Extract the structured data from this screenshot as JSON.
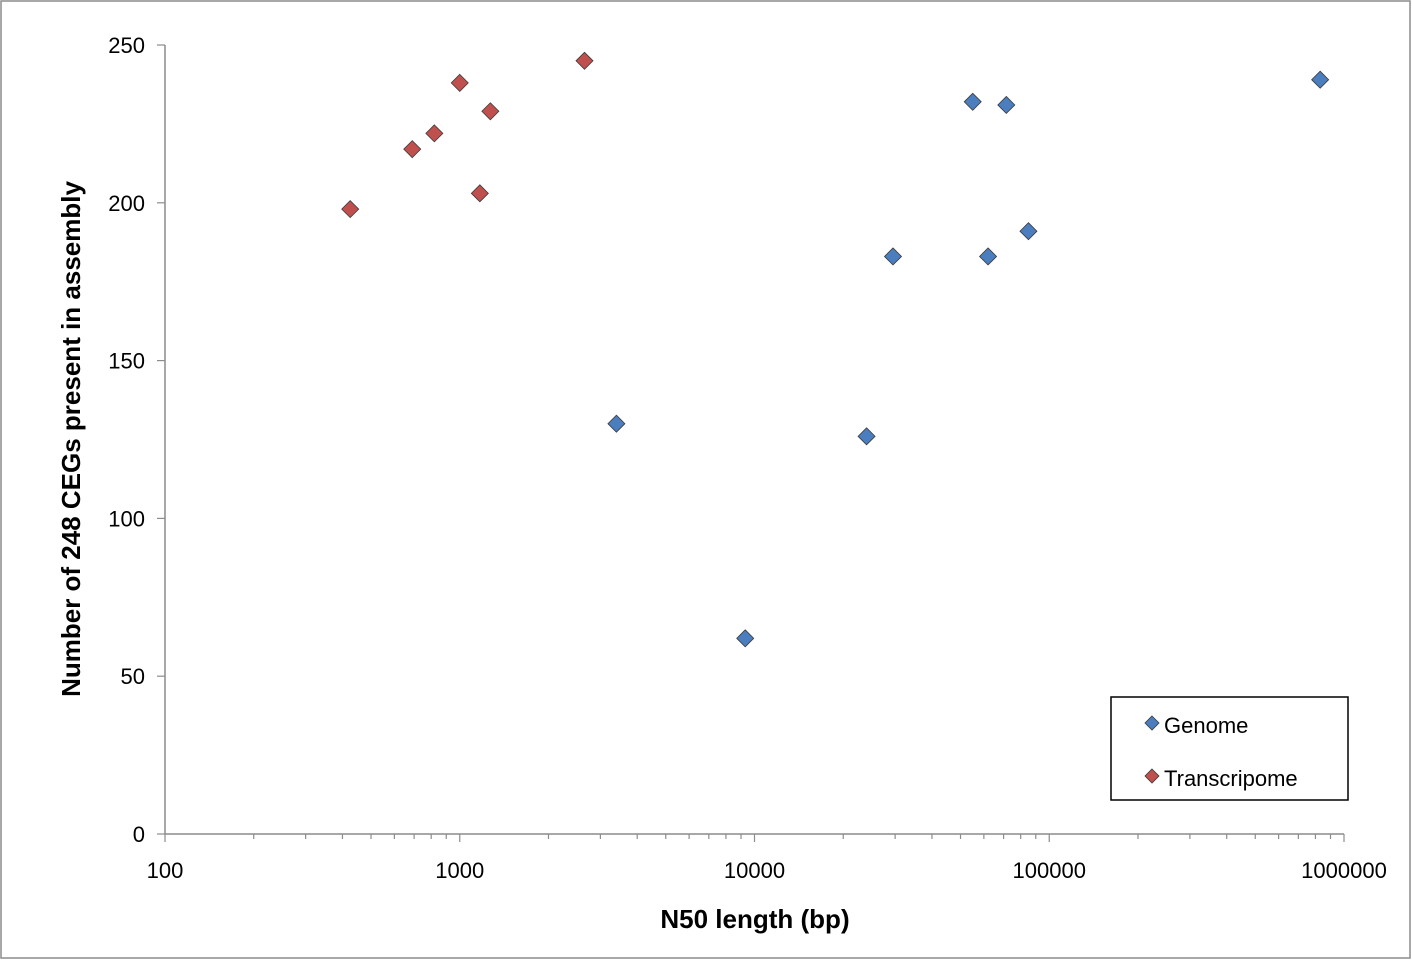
{
  "chart_data": {
    "type": "scatter",
    "title": "",
    "xlabel": "N50 length (bp)",
    "ylabel": "Number of 248 CEGs present in assembly",
    "xscale": "log",
    "xlim": [
      100,
      1000000
    ],
    "ylim": [
      0,
      250
    ],
    "x_ticks": [
      "100",
      "1000",
      "10000",
      "100000",
      "1000000"
    ],
    "y_ticks": [
      "0",
      "50",
      "100",
      "150",
      "200",
      "250"
    ],
    "grid": false,
    "legend_position": "bottom-right",
    "marker": "diamond",
    "series": [
      {
        "name": "Genome",
        "color": "#4a7ebf",
        "points": [
          {
            "x": 3400,
            "y": 130
          },
          {
            "x": 9300,
            "y": 62
          },
          {
            "x": 24000,
            "y": 126
          },
          {
            "x": 29500,
            "y": 183
          },
          {
            "x": 55000,
            "y": 232
          },
          {
            "x": 62000,
            "y": 183
          },
          {
            "x": 71500,
            "y": 231
          },
          {
            "x": 85000,
            "y": 191
          },
          {
            "x": 830000,
            "y": 239
          }
        ]
      },
      {
        "name": "Transcripome",
        "color": "#c0504d",
        "points": [
          {
            "x": 425,
            "y": 198
          },
          {
            "x": 690,
            "y": 217
          },
          {
            "x": 820,
            "y": 222
          },
          {
            "x": 1000,
            "y": 238
          },
          {
            "x": 1170,
            "y": 203
          },
          {
            "x": 1270,
            "y": 229
          },
          {
            "x": 2650,
            "y": 245
          }
        ]
      }
    ]
  }
}
